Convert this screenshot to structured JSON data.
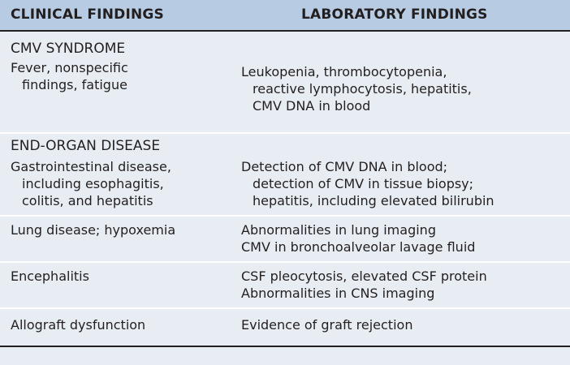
{
  "header": {
    "clinical": "CLINICAL FINDINGS",
    "laboratory": "LABORATORY FINDINGS"
  },
  "sections": [
    {
      "title": "CMV SYNDROME",
      "rows": [
        {
          "clinical": [
            "Fever, nonspecific",
            "findings, fatigue"
          ],
          "laboratory": [
            "Leukopenia, thrombocytopenia,",
            "reactive lymphocytosis, hepatitis,",
            "CMV DNA in blood"
          ]
        }
      ]
    },
    {
      "title": "END-ORGAN DISEASE",
      "rows": [
        {
          "clinical": [
            "Gastrointestinal disease,",
            "including esophagitis,",
            "colitis, and hepatitis"
          ],
          "laboratory": [
            "Detection of CMV DNA in blood;",
            "detection of CMV in tissue biopsy;",
            "hepatitis, including elevated bilirubin"
          ]
        },
        {
          "clinical": [
            "Lung disease; hypoxemia"
          ],
          "laboratory": [
            "Abnormalities in lung imaging",
            "CMV in bronchoalveolar lavage fluid"
          ]
        },
        {
          "clinical": [
            "Encephalitis"
          ],
          "laboratory": [
            "CSF pleocytosis, elevated CSF protein",
            "Abnormalities in CNS imaging"
          ]
        },
        {
          "clinical": [
            "Allograft dysfunction"
          ],
          "laboratory": [
            "Evidence of graft rejection"
          ]
        }
      ]
    }
  ]
}
